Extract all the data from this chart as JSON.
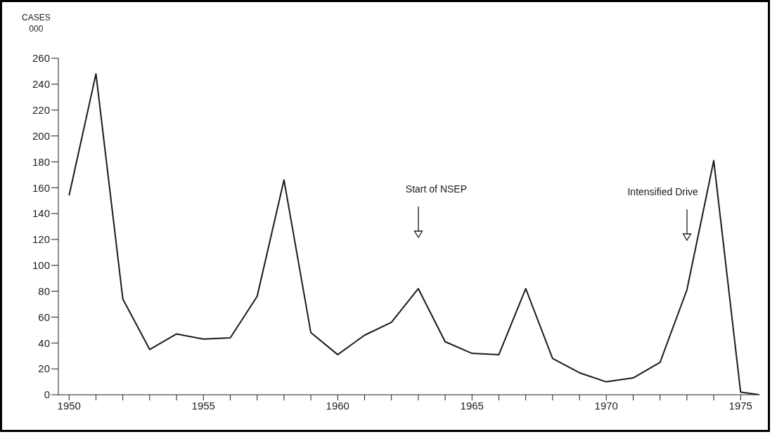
{
  "chart_data": {
    "type": "line",
    "ylabel": "CASES\n000",
    "x": [
      1950,
      1951,
      1952,
      1953,
      1954,
      1955,
      1956,
      1957,
      1958,
      1959,
      1960,
      1961,
      1962,
      1963,
      1964,
      1965,
      1966,
      1967,
      1968,
      1969,
      1970,
      1971,
      1972,
      1973,
      1974,
      1975,
      1975.7
    ],
    "series": [
      {
        "color": "#1a1a1a",
        "values": [
          154,
          248,
          74,
          35,
          47,
          43,
          44,
          76,
          166,
          48,
          31,
          46,
          56,
          82,
          41,
          32,
          31,
          82,
          28,
          17,
          10,
          13,
          25,
          81,
          181,
          2,
          0
        ]
      }
    ],
    "xlim": [
      1949.6,
      1975.7
    ],
    "xticks": [
      1950,
      {
        "value": 1951,
        "label": null
      },
      {
        "value": 1952,
        "label": null
      },
      {
        "value": 1953,
        "label": null
      },
      {
        "value": 1954,
        "label": null
      },
      1955,
      {
        "value": 1956,
        "label": null
      },
      {
        "value": 1957,
        "label": null
      },
      {
        "value": 1958,
        "label": null
      },
      {
        "value": 1959,
        "label": null
      },
      1960,
      {
        "value": 1961,
        "label": null
      },
      {
        "value": 1962,
        "label": null
      },
      {
        "value": 1963,
        "label": null
      },
      {
        "value": 1964,
        "label": null
      },
      1965,
      {
        "value": 1966,
        "label": null
      },
      {
        "value": 1967,
        "label": null
      },
      {
        "value": 1968,
        "label": null
      },
      {
        "value": 1969,
        "label": null
      },
      1970,
      {
        "value": 1971,
        "label": null
      },
      {
        "value": 1972,
        "label": null
      },
      {
        "value": 1973,
        "label": null
      },
      {
        "value": 1974,
        "label": null
      },
      1975
    ],
    "ylim": [
      0,
      260
    ],
    "yticks": [
      0,
      20,
      40,
      60,
      80,
      100,
      120,
      140,
      160,
      180,
      200,
      220,
      240,
      260
    ],
    "annotations": [
      "Start of NSEP",
      "Intensified Drive"
    ],
    "grid": false,
    "legend": false,
    "marker": "none",
    "line_style": "solid"
  }
}
